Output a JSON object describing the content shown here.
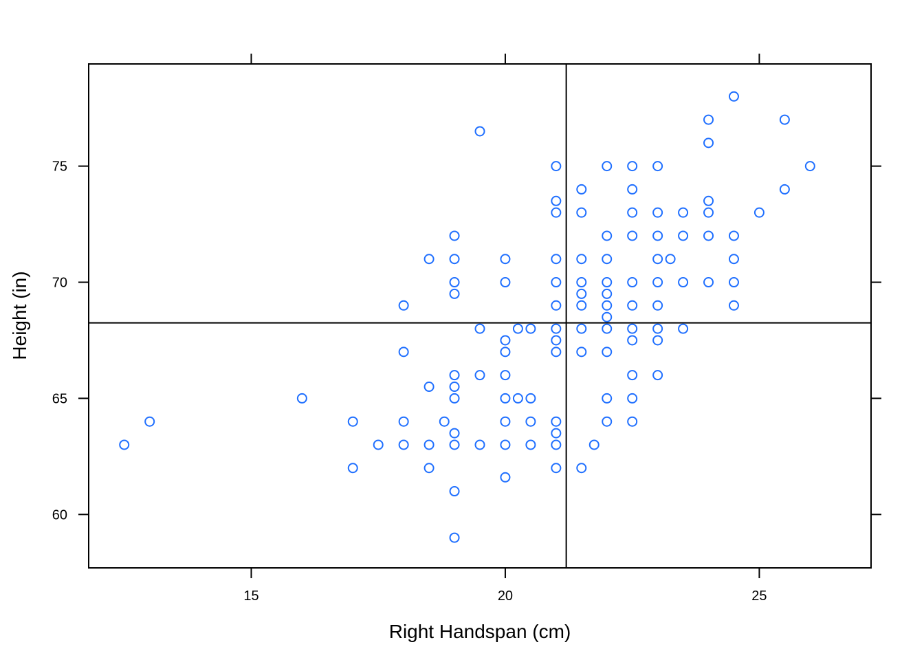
{
  "chart_data": {
    "type": "scatter",
    "title": "",
    "xlabel": "Right Handspan (cm)",
    "ylabel": "Height (in)",
    "xlim": [
      11.8,
      27.2
    ],
    "ylim": [
      57.7,
      79.4
    ],
    "xticks": [
      15,
      20,
      25
    ],
    "yticks": [
      60,
      65,
      70,
      75
    ],
    "xtick_labels": [
      "15",
      "20",
      "25"
    ],
    "ytick_labels": [
      "60",
      "65",
      "70",
      "75"
    ],
    "ticks_on_all_sides": true,
    "grid": false,
    "reference_lines": {
      "vertical_x": 21.2,
      "horizontal_y": 68.25
    },
    "marker": "open-circle",
    "point_color": "#1f6fff",
    "points": [
      [
        12.5,
        63
      ],
      [
        13,
        64
      ],
      [
        16,
        65
      ],
      [
        17,
        64
      ],
      [
        17,
        62
      ],
      [
        17.5,
        63
      ],
      [
        18,
        69
      ],
      [
        18,
        67
      ],
      [
        18,
        64
      ],
      [
        18,
        63
      ],
      [
        18.5,
        71
      ],
      [
        18.5,
        65.5
      ],
      [
        18.5,
        63
      ],
      [
        18.5,
        62
      ],
      [
        18.8,
        64
      ],
      [
        19,
        72
      ],
      [
        19,
        71
      ],
      [
        19,
        70
      ],
      [
        19,
        69.5
      ],
      [
        19,
        66
      ],
      [
        19,
        65.5
      ],
      [
        19,
        65
      ],
      [
        19,
        63.5
      ],
      [
        19,
        63
      ],
      [
        19,
        61
      ],
      [
        19,
        59
      ],
      [
        19.5,
        76.5
      ],
      [
        19.5,
        68
      ],
      [
        19.5,
        66
      ],
      [
        19.5,
        63
      ],
      [
        20,
        71
      ],
      [
        20,
        70
      ],
      [
        20,
        67.5
      ],
      [
        20,
        67
      ],
      [
        20,
        66
      ],
      [
        20,
        65
      ],
      [
        20,
        64
      ],
      [
        20,
        63
      ],
      [
        20,
        61.6
      ],
      [
        20.25,
        68
      ],
      [
        20.25,
        65
      ],
      [
        20.5,
        68
      ],
      [
        20.5,
        65
      ],
      [
        20.5,
        64
      ],
      [
        20.5,
        63
      ],
      [
        21,
        75
      ],
      [
        21,
        73.5
      ],
      [
        21,
        73
      ],
      [
        21,
        71
      ],
      [
        21,
        70
      ],
      [
        21,
        69
      ],
      [
        21,
        68
      ],
      [
        21,
        67.5
      ],
      [
        21,
        67
      ],
      [
        21,
        64
      ],
      [
        21,
        63.5
      ],
      [
        21,
        63
      ],
      [
        21,
        62
      ],
      [
        21.5,
        74
      ],
      [
        21.5,
        73
      ],
      [
        21.5,
        71
      ],
      [
        21.5,
        70
      ],
      [
        21.5,
        69.5
      ],
      [
        21.5,
        69
      ],
      [
        21.5,
        68
      ],
      [
        21.5,
        67
      ],
      [
        21.5,
        62
      ],
      [
        21.75,
        63
      ],
      [
        22,
        75
      ],
      [
        22,
        72
      ],
      [
        22,
        71
      ],
      [
        22,
        70
      ],
      [
        22,
        69.5
      ],
      [
        22,
        69
      ],
      [
        22,
        68.5
      ],
      [
        22,
        68
      ],
      [
        22,
        67
      ],
      [
        22,
        65
      ],
      [
        22,
        64
      ],
      [
        22.5,
        75
      ],
      [
        22.5,
        74
      ],
      [
        22.5,
        73
      ],
      [
        22.5,
        72
      ],
      [
        22.5,
        70
      ],
      [
        22.5,
        69
      ],
      [
        22.5,
        68
      ],
      [
        22.5,
        67.5
      ],
      [
        22.5,
        66
      ],
      [
        22.5,
        65
      ],
      [
        22.5,
        64
      ],
      [
        23,
        75
      ],
      [
        23,
        73
      ],
      [
        23,
        72
      ],
      [
        23,
        71
      ],
      [
        23,
        70
      ],
      [
        23,
        69
      ],
      [
        23,
        68
      ],
      [
        23,
        67.5
      ],
      [
        23,
        66
      ],
      [
        23.25,
        71
      ],
      [
        23.5,
        73
      ],
      [
        23.5,
        72
      ],
      [
        23.5,
        70
      ],
      [
        23.5,
        68
      ],
      [
        24,
        77
      ],
      [
        24,
        76
      ],
      [
        24,
        73.5
      ],
      [
        24,
        73
      ],
      [
        24,
        72
      ],
      [
        24,
        70
      ],
      [
        24.5,
        78
      ],
      [
        24.5,
        72
      ],
      [
        24.5,
        71
      ],
      [
        24.5,
        70
      ],
      [
        24.5,
        69
      ],
      [
        25,
        73
      ],
      [
        25.5,
        77
      ],
      [
        25.5,
        74
      ],
      [
        26,
        75
      ]
    ]
  }
}
